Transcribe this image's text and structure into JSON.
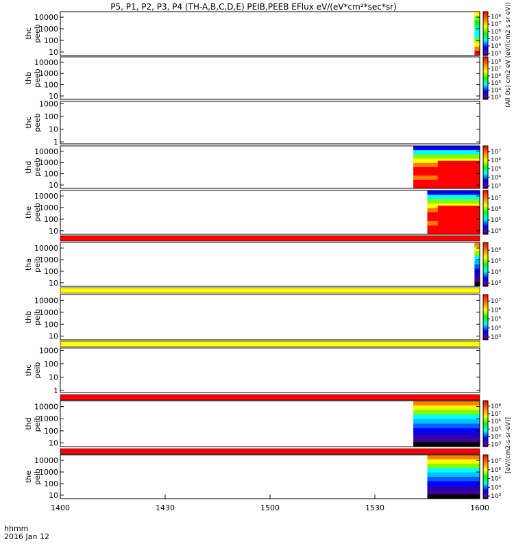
{
  "page": {
    "title": "P5, P1, P2, P3, P4 (TH-A,B,C,D,E) PEIB,PEEB EFlux eV/(eV*cm²*sec*sr)",
    "xaxis_unit": "hhmm",
    "date": "2016 Jan 12"
  },
  "chart_data": {
    "type": "heatmap",
    "title": "P5, P1, P2, P3, P4 (TH-A,B,C,D,E) PEIB,PEEB EFlux eV/(eV*cm²*sec*sr)",
    "x_unit": "hhmm",
    "x_ticks": [
      "1400",
      "1430",
      "1500",
      "1530",
      "1600"
    ],
    "x_range_minutes": [
      0,
      120
    ],
    "y_scale": "log",
    "colormap": "rainbow",
    "panels": [
      {
        "name": "thc",
        "sub": "peeb",
        "yticks": [
          "10",
          "100",
          "1000",
          "10000"
        ],
        "ymin": 5,
        "ymax": 30000,
        "cbar_ticks": [
          "10³",
          "10⁴",
          "10⁵",
          "10⁶",
          "10⁷",
          "10⁸"
        ],
        "cbar_label": "(All Os) cm2 eV (eV/(cm2 s sr eV))",
        "data_start_min": 118.5,
        "bar_after": null
      },
      {
        "name": "thb",
        "sub": "peeb",
        "yticks": [
          "10",
          "100",
          "1000",
          "10000"
        ],
        "ymin": 5,
        "ymax": 30000,
        "cbar_ticks": [
          "10³",
          "10⁴",
          "10⁵",
          "10⁶",
          "10⁷",
          "10⁸"
        ],
        "cbar_label": "",
        "data_start_min": null,
        "bar_after": null
      },
      {
        "name": "thc",
        "sub": "peeb",
        "yticks": [
          "1",
          "10",
          "100",
          "1000"
        ],
        "ymin": 0.7,
        "ymax": 1500,
        "cbar_ticks": [],
        "cbar_label": "",
        "data_start_min": null,
        "bar_after": null
      },
      {
        "name": "thd",
        "sub": "peeb",
        "yticks": [
          "10",
          "100",
          "1000",
          "10000"
        ],
        "ymin": 5,
        "ymax": 30000,
        "cbar_ticks": [
          "10³",
          "10⁴",
          "10⁵",
          "10⁶",
          "10⁷"
        ],
        "cbar_label": "",
        "data_start_min": 101,
        "bar_after": null
      },
      {
        "name": "the",
        "sub": "peeb",
        "yticks": [
          "10",
          "100",
          "1000",
          "10000"
        ],
        "ymin": 5,
        "ymax": 30000,
        "cbar_ticks": [
          "10⁴",
          "10⁵",
          "10⁶",
          "10⁷"
        ],
        "cbar_label": "",
        "data_start_min": 105,
        "bar_after": "red"
      },
      {
        "name": "tha",
        "sub": "peib",
        "yticks": [
          "10",
          "100",
          "1000",
          "10000"
        ],
        "ymin": 5,
        "ymax": 30000,
        "cbar_ticks": [
          "10³",
          "10⁴",
          "10⁵",
          "10⁶"
        ],
        "cbar_label": "",
        "data_start_min": 118.5,
        "bar_after": "yellow"
      },
      {
        "name": "thb",
        "sub": "peib",
        "yticks": [
          "10",
          "100",
          "1000",
          "10000"
        ],
        "ymin": 5,
        "ymax": 30000,
        "cbar_ticks": [
          "10³",
          "10⁴",
          "10⁵",
          "10⁶",
          "10⁷"
        ],
        "cbar_label": "",
        "data_start_min": null,
        "bar_after": "yellow"
      },
      {
        "name": "thc",
        "sub": "peib",
        "yticks": [
          "1",
          "10",
          "100",
          "1000"
        ],
        "ymin": 0.7,
        "ymax": 1500,
        "cbar_ticks": [],
        "cbar_label": "",
        "data_start_min": null,
        "bar_after": "red"
      },
      {
        "name": "thd",
        "sub": "peib",
        "yticks": [
          "10",
          "100",
          "1000",
          "10000"
        ],
        "ymin": 5,
        "ymax": 30000,
        "cbar_ticks": [
          "10³",
          "10⁴",
          "10⁵",
          "10⁶",
          "10⁷",
          "10⁸"
        ],
        "cbar_label": "",
        "data_start_min": 101,
        "bar_after": "red"
      },
      {
        "name": "the",
        "sub": "peib",
        "yticks": [
          "10",
          "100",
          "1000",
          "10000"
        ],
        "ymin": 5,
        "ymax": 30000,
        "cbar_ticks": [
          "10³",
          "10⁴",
          "10⁵",
          "10⁶",
          "10⁷"
        ],
        "cbar_label": "[eV/(cm2-s-sr-eV)]",
        "data_start_min": 105,
        "bar_after": null
      }
    ]
  },
  "colors": {
    "bar_red": "#ff0000",
    "bar_yellow": "#ffff00"
  }
}
